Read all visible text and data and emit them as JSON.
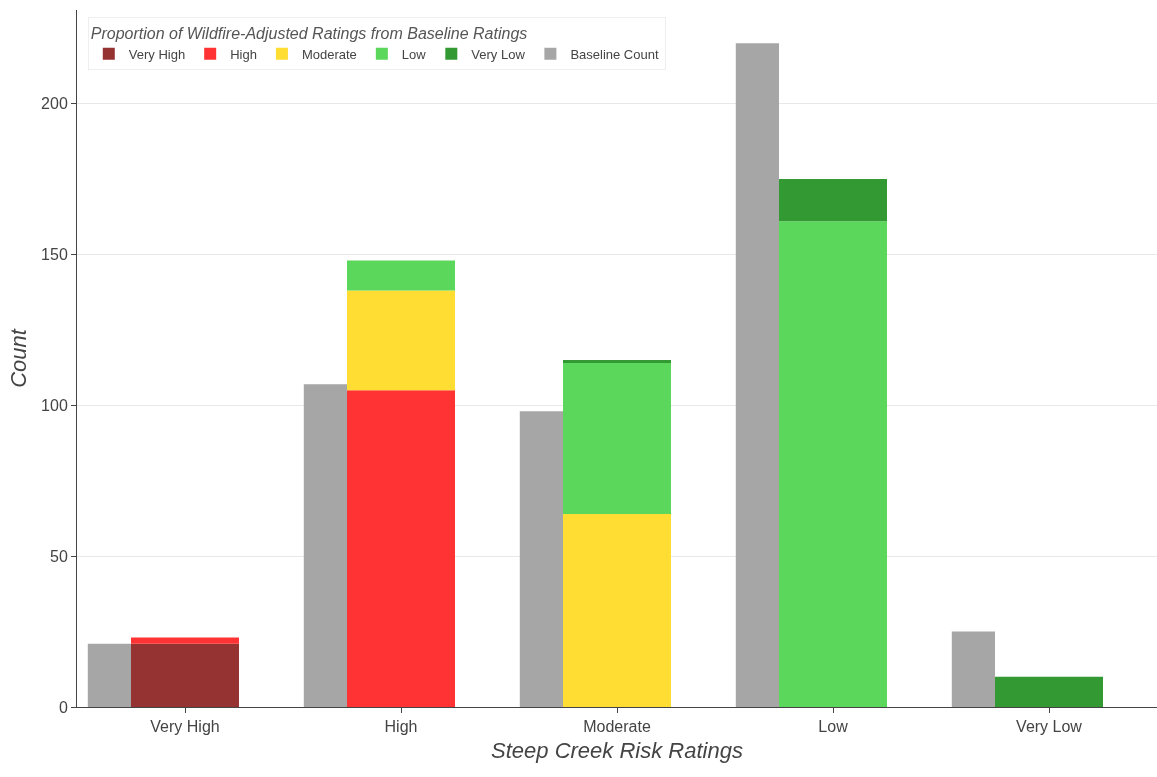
{
  "chart_data": {
    "type": "bar",
    "xlabel": "Steep Creek Risk Ratings",
    "ylabel": "Count",
    "legend_title": "Proportion of Wildfire-Adjusted Ratings from Baseline Ratings",
    "categories": [
      "Very High",
      "High",
      "Moderate",
      "Low",
      "Very Low"
    ],
    "series": [
      {
        "name": "Very High",
        "color": "#953333",
        "values": [
          21,
          null,
          null,
          null,
          null
        ],
        "base": [
          0,
          null,
          null,
          null,
          null
        ]
      },
      {
        "name": "High",
        "color": "#ff3333",
        "values": [
          2,
          105,
          null,
          null,
          null
        ],
        "base": [
          21,
          0,
          null,
          null,
          null
        ]
      },
      {
        "name": "Moderate",
        "color": "#ffdd33",
        "values": [
          null,
          33,
          64,
          null,
          null
        ],
        "base": [
          null,
          105,
          0,
          null,
          null
        ]
      },
      {
        "name": "Low",
        "color": "#5bd75b",
        "values": [
          null,
          10,
          50,
          161,
          null
        ],
        "base": [
          null,
          138,
          64,
          0,
          null
        ]
      },
      {
        "name": "Very Low",
        "color": "#339933",
        "values": [
          null,
          null,
          1,
          14,
          10
        ],
        "base": [
          null,
          null,
          114,
          161,
          0
        ]
      },
      {
        "name": "Baseline Count",
        "color": "#a6a6a6",
        "values": [
          21,
          107,
          98,
          220,
          25
        ]
      }
    ],
    "ylim": [
      0,
      231
    ],
    "yticks": [
      0,
      50,
      100,
      150,
      200
    ],
    "grid": "y",
    "legend": "top left"
  }
}
